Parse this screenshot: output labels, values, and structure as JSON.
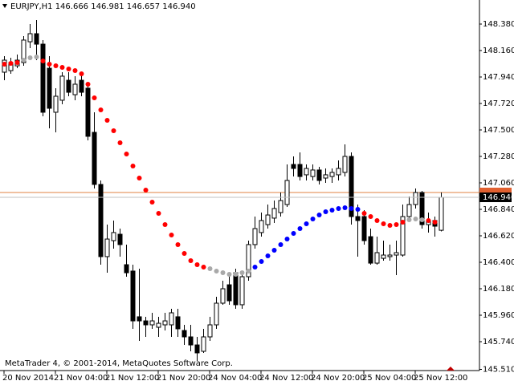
{
  "chart_data": {
    "type": "candlestick",
    "title": "EURJPY,H1  146.666 146.981 146.657 146.940",
    "footer": "MetaTrader 4, © 2001-2014, MetaQuotes Software Corp.",
    "categories": [
      "20 Nov 2014",
      null,
      null,
      null,
      null,
      null,
      null,
      null,
      "21 Nov 04:00",
      null,
      null,
      null,
      null,
      null,
      null,
      null,
      "21 Nov 12:00",
      null,
      null,
      null,
      null,
      null,
      null,
      null,
      "21 Nov 20:00",
      null,
      null,
      null,
      null,
      null,
      null,
      null,
      "24 Nov 04:00",
      null,
      null,
      null,
      null,
      null,
      null,
      null,
      "24 Nov 12:00",
      null,
      null,
      null,
      null,
      null,
      null,
      null,
      "24 Nov 20:00",
      null,
      null,
      null,
      null,
      null,
      null,
      null,
      "25 Nov 04:00",
      null,
      null,
      null,
      null,
      null,
      null,
      null,
      "25 Nov 12:00",
      null,
      null,
      null,
      null
    ],
    "open": [
      147.98,
      147.993,
      148.033,
      148.06,
      148.233,
      148.3,
      148.213,
      148.013,
      147.647,
      147.747,
      147.913,
      147.793,
      147.913,
      147.847,
      147.48,
      147.047,
      146.447,
      146.58,
      146.633,
      146.38,
      146.327,
      145.947,
      145.913,
      145.88,
      145.86,
      145.88,
      145.88,
      145.947,
      145.833,
      145.78,
      145.713,
      145.66,
      145.78,
      145.88,
      146.06,
      146.213,
      146.313,
      146.047,
      146.28,
      146.547,
      146.647,
      146.713,
      146.767,
      146.813,
      146.88,
      147.213,
      147.213,
      147.127,
      147.113,
      147.167,
      147.1,
      147.113,
      147.127,
      147.147,
      147.28,
      146.78,
      146.78,
      146.613,
      146.393,
      146.433,
      146.447,
      146.46,
      146.46,
      146.78,
      146.88,
      146.98,
      146.713,
      146.747,
      146.666
    ],
    "high": [
      148.113,
      148.1,
      148.127,
      148.28,
      148.38,
      148.413,
      148.247,
      148.113,
      147.847,
      147.98,
      147.98,
      147.947,
      147.98,
      147.88,
      147.647,
      147.08,
      146.713,
      146.747,
      146.68,
      146.547,
      146.38,
      146.347,
      145.947,
      145.98,
      145.947,
      145.98,
      146.013,
      146.013,
      145.88,
      145.88,
      145.78,
      145.847,
      145.947,
      146.113,
      146.247,
      146.313,
      146.347,
      146.313,
      146.58,
      146.78,
      146.813,
      146.88,
      146.913,
      146.98,
      147.213,
      147.28,
      147.313,
      147.213,
      147.213,
      147.193,
      147.18,
      147.18,
      147.247,
      147.38,
      147.313,
      146.88,
      146.833,
      146.68,
      146.613,
      146.58,
      146.547,
      146.58,
      146.88,
      146.947,
      147.013,
      146.993,
      146.813,
      146.78,
      146.981
    ],
    "low": [
      147.913,
      147.967,
      148.013,
      148.033,
      148.18,
      148.08,
      147.613,
      147.513,
      147.48,
      147.713,
      147.78,
      147.747,
      147.78,
      147.413,
      147.013,
      146.38,
      146.313,
      146.513,
      146.447,
      146.28,
      145.847,
      145.747,
      145.78,
      145.847,
      145.78,
      145.833,
      145.78,
      145.78,
      145.713,
      145.66,
      145.58,
      145.647,
      145.747,
      145.847,
      146.047,
      146.047,
      146.013,
      146.013,
      146.247,
      146.513,
      146.613,
      146.68,
      146.727,
      146.78,
      146.86,
      147.113,
      147.08,
      147.08,
      147.08,
      147.047,
      147.06,
      147.06,
      147.08,
      147.113,
      146.713,
      146.447,
      146.547,
      146.38,
      146.38,
      146.413,
      146.413,
      146.293,
      146.447,
      146.747,
      146.847,
      146.68,
      146.647,
      146.613,
      146.657
    ],
    "close": [
      148.08,
      148.06,
      148.08,
      148.247,
      148.3,
      148.213,
      147.647,
      147.68,
      147.78,
      147.947,
      147.813,
      147.88,
      147.813,
      147.447,
      147.047,
      146.447,
      146.593,
      146.647,
      146.547,
      146.313,
      145.913,
      145.913,
      145.88,
      145.913,
      145.893,
      145.913,
      145.98,
      145.847,
      145.78,
      145.713,
      145.647,
      145.78,
      145.88,
      146.06,
      146.18,
      146.08,
      146.047,
      146.28,
      146.547,
      146.68,
      146.747,
      146.793,
      146.847,
      146.913,
      147.08,
      147.18,
      147.113,
      147.18,
      147.167,
      147.08,
      147.127,
      147.147,
      147.18,
      147.28,
      146.78,
      146.747,
      146.58,
      146.393,
      146.48,
      146.46,
      146.46,
      146.48,
      146.78,
      146.88,
      146.98,
      146.713,
      146.747,
      146.7,
      146.94
    ],
    "candle_colors": {
      "bull": "#ffffff",
      "bear": "#000000",
      "outline": "#000000"
    },
    "indicator": {
      "values": [
        148.047,
        148.053,
        148.06,
        148.08,
        148.1,
        148.107,
        148.073,
        148.047,
        148.033,
        148.02,
        148.007,
        147.993,
        147.967,
        147.88,
        147.767,
        147.667,
        147.58,
        147.493,
        147.393,
        147.3,
        147.2,
        147.1,
        147.0,
        146.9,
        146.807,
        146.713,
        146.627,
        146.547,
        146.473,
        146.413,
        146.38,
        146.36,
        146.347,
        146.327,
        146.313,
        146.3,
        146.3,
        146.313,
        146.327,
        146.36,
        146.407,
        146.453,
        146.5,
        146.547,
        146.593,
        146.64,
        146.68,
        146.72,
        146.76,
        146.793,
        146.82,
        146.833,
        146.847,
        146.853,
        146.847,
        146.84,
        146.807,
        146.78,
        146.747,
        146.72,
        146.707,
        146.713,
        146.733,
        146.753,
        146.76,
        146.753,
        146.747,
        146.733,
        null
      ],
      "colors": [
        "#ff0000",
        "#ff0000",
        "#ff0000",
        "#a9a9a9",
        "#a9a9a9",
        "#a9a9a9",
        "#ff0000",
        "#ff0000",
        "#ff0000",
        "#ff0000",
        "#ff0000",
        "#ff0000",
        "#ff0000",
        "#ff0000",
        "#ff0000",
        "#ff0000",
        "#ff0000",
        "#ff0000",
        "#ff0000",
        "#ff0000",
        "#ff0000",
        "#ff0000",
        "#ff0000",
        "#ff0000",
        "#ff0000",
        "#ff0000",
        "#ff0000",
        "#ff0000",
        "#ff0000",
        "#ff0000",
        "#ff0000",
        "#ff0000",
        "#a9a9a9",
        "#a9a9a9",
        "#a9a9a9",
        "#a9a9a9",
        "#a9a9a9",
        "#a9a9a9",
        "#a9a9a9",
        "#0000ff",
        "#0000ff",
        "#0000ff",
        "#0000ff",
        "#0000ff",
        "#0000ff",
        "#0000ff",
        "#0000ff",
        "#0000ff",
        "#0000ff",
        "#0000ff",
        "#0000ff",
        "#0000ff",
        "#0000ff",
        "#0000ff",
        "#0000ff",
        "#0000ff",
        "#ff0000",
        "#ff0000",
        "#ff0000",
        "#ff0000",
        "#ff0000",
        "#ff0000",
        "#ff0000",
        "#a9a9a9",
        "#a9a9a9",
        "#a9a9a9",
        "#ff0000",
        "#ff0000",
        null
      ]
    },
    "bid": {
      "value": 146.94,
      "label": "146.940"
    },
    "ask": 146.98,
    "ylim": [
      145.5,
      148.58
    ],
    "yticks": [
      {
        "value": 148.38,
        "label": "148.380"
      },
      {
        "value": 148.16,
        "label": "148.160"
      },
      {
        "value": 147.94,
        "label": "147.940"
      },
      {
        "value": 147.72,
        "label": "147.720"
      },
      {
        "value": 147.5,
        "label": "147.500"
      },
      {
        "value": 147.28,
        "label": "147.280"
      },
      {
        "value": 147.06,
        "label": "147.060"
      },
      {
        "value": 146.84,
        "label": "146.840"
      },
      {
        "value": 146.62,
        "label": "146.620"
      },
      {
        "value": 146.4,
        "label": "146.400"
      },
      {
        "value": 146.18,
        "label": "146.180"
      },
      {
        "value": 145.96,
        "label": "145.960"
      },
      {
        "value": 145.74,
        "label": "145.740"
      },
      {
        "value": 145.51,
        "label": "145.510"
      }
    ]
  }
}
